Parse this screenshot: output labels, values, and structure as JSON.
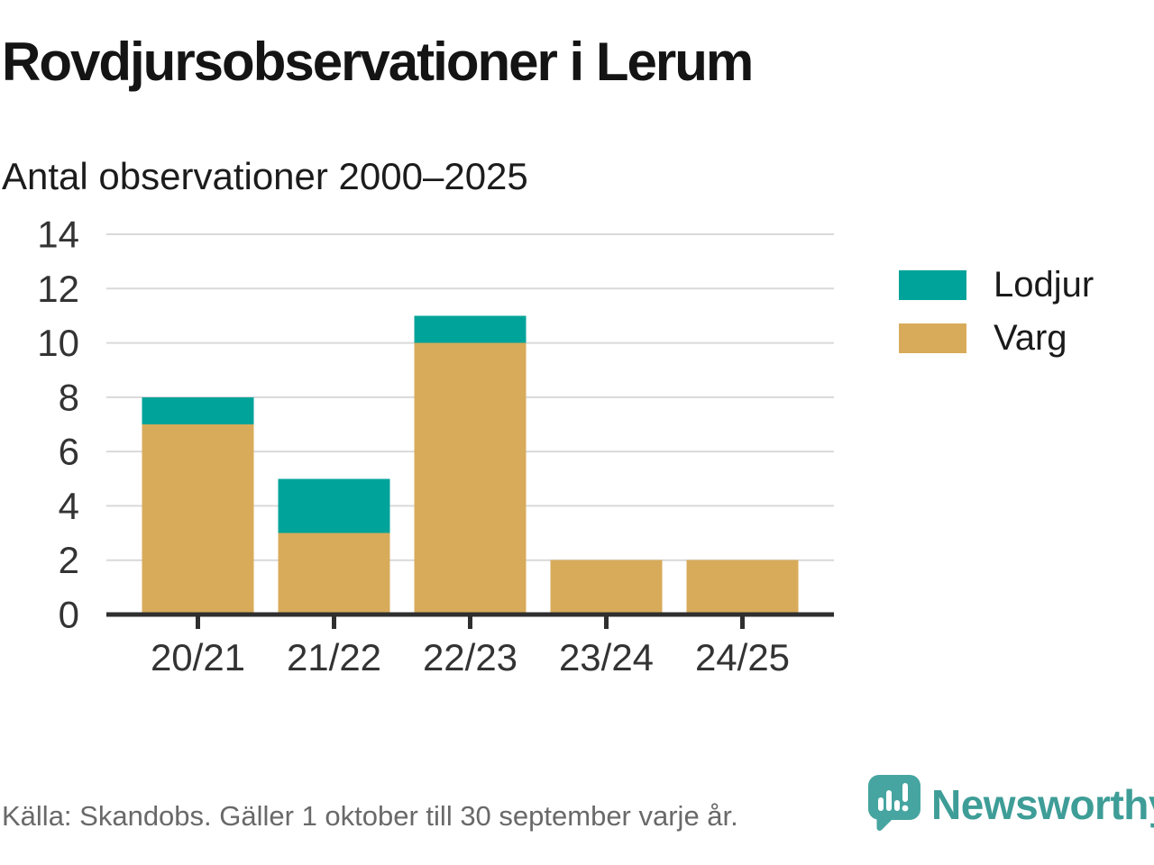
{
  "header": {
    "title": "Rovdjursobservationer i Lerum",
    "subtitle": "Antal observationer 2000–2025"
  },
  "footer": {
    "source": "Källa: Skandobs. Gäller 1 oktober till 30 september varje år.",
    "brand_name": "Newsworthy",
    "brand_color": "#3e9d97",
    "logo_color": "#46a5a0"
  },
  "chart_data": {
    "type": "bar",
    "stacked": true,
    "title": "Rovdjursobservationer i Lerum",
    "subtitle": "Antal observationer 2000–2025",
    "categories": [
      "20/21",
      "21/22",
      "22/23",
      "23/24",
      "24/25"
    ],
    "series": [
      {
        "name": "Varg",
        "color": "#d8ab5b",
        "values": [
          7,
          3,
          10,
          2,
          2
        ]
      },
      {
        "name": "Lodjur",
        "color": "#00a39a",
        "values": [
          1,
          2,
          1,
          0,
          0
        ]
      }
    ],
    "stack_order": "bottom-to-top",
    "totals": [
      8,
      5,
      11,
      2,
      2
    ],
    "y_axis": {
      "min": 0,
      "max": 14,
      "tick_step": 2,
      "ticks": [
        0,
        2,
        4,
        6,
        8,
        10,
        12,
        14
      ]
    },
    "x_axis_label": "",
    "y_axis_label": "",
    "grid": "horizontal",
    "legend": {
      "position": "right",
      "items": [
        {
          "label": "Lodjur",
          "color": "#00a39a"
        },
        {
          "label": "Varg",
          "color": "#d8ab5b"
        }
      ]
    },
    "colors": {
      "axis": "#2f2f2f",
      "grid": "#d9d9d9",
      "tick_label": "#333333"
    }
  }
}
